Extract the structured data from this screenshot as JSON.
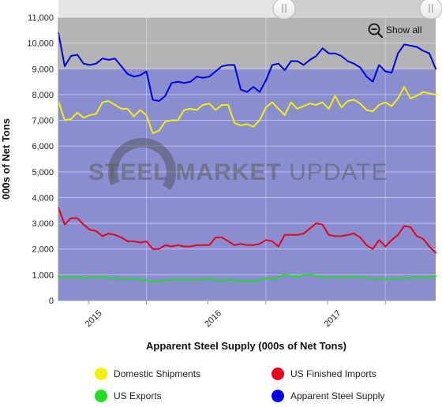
{
  "chart_data": {
    "type": "line",
    "xlabel": "Apparent Steel Supply (000s of Net Tons)",
    "ylabel": "000s of Net Tons",
    "ylim": [
      0,
      11000
    ],
    "yticks": [
      0,
      1000,
      2000,
      3000,
      4000,
      5000,
      6000,
      7000,
      8000,
      9000,
      10000,
      11000
    ],
    "ytick_labels": [
      "0",
      "1,000",
      "2,000",
      "3,000",
      "4,000",
      "5,000",
      "6,000",
      "7,000",
      "8,000",
      "9,000",
      "10,000",
      "11,000"
    ],
    "x_tick_labels": [
      "2015",
      "2016",
      "2017"
    ],
    "grid": true,
    "legend_position": "bottom",
    "watermark": "STEEL MARKET UPDATE",
    "show_all_label": "Show all",
    "series": [
      {
        "name": "Domestic Shipments",
        "color": "#f2f200",
        "values": [
          7750,
          7000,
          7050,
          7300,
          7100,
          7200,
          7250,
          7700,
          7750,
          7600,
          7450,
          7450,
          7150,
          7400,
          7200,
          6500,
          6600,
          6950,
          7000,
          7000,
          7400,
          7450,
          7400,
          7600,
          7650,
          7400,
          7600,
          7600,
          6900,
          6800,
          6850,
          6750,
          7000,
          7500,
          7700,
          7450,
          7200,
          7700,
          7450,
          7550,
          7650,
          7600,
          7700,
          7450,
          7950,
          7500,
          7750,
          7800,
          7650,
          7400,
          7350,
          7600,
          7700,
          7550,
          7850,
          8300,
          7850,
          7950,
          8100,
          8050,
          8000
        ]
      },
      {
        "name": "US Finished Imports",
        "color": "#e8001c",
        "values": [
          3600,
          2950,
          3200,
          3200,
          2950,
          2750,
          2700,
          2500,
          2600,
          2550,
          2450,
          2300,
          2300,
          2250,
          2300,
          2000,
          2000,
          2150,
          2100,
          2150,
          2100,
          2100,
          2150,
          2150,
          2150,
          2450,
          2450,
          2300,
          2150,
          2200,
          2150,
          2150,
          2200,
          2350,
          2300,
          2100,
          2550,
          2550,
          2550,
          2600,
          2800,
          3000,
          2950,
          2550,
          2500,
          2500,
          2550,
          2600,
          2450,
          2150,
          2000,
          2350,
          2100,
          2350,
          2550,
          2900,
          2850,
          2500,
          2400,
          2100,
          1850
        ]
      },
      {
        "name": "US Exports",
        "color": "#22dd22",
        "values": [
          950,
          900,
          900,
          920,
          880,
          900,
          880,
          920,
          870,
          870,
          860,
          840,
          850,
          800,
          780,
          730,
          750,
          790,
          800,
          800,
          810,
          810,
          800,
          820,
          830,
          800,
          780,
          810,
          790,
          770,
          760,
          750,
          800,
          850,
          830,
          900,
          1000,
          950,
          920,
          980,
          1000,
          950,
          930,
          880,
          920,
          900,
          910,
          920,
          900,
          900,
          830,
          850,
          820,
          830,
          850,
          880,
          890,
          900,
          900,
          900,
          960
        ]
      },
      {
        "name": "Apparent Steel Supply",
        "color": "#0000e6",
        "values": [
          10400,
          9100,
          9500,
          9550,
          9200,
          9150,
          9200,
          9400,
          9350,
          9400,
          9100,
          8800,
          8700,
          8750,
          8900,
          7800,
          7750,
          7950,
          8450,
          8500,
          8450,
          8500,
          8700,
          8650,
          8700,
          8900,
          9100,
          9150,
          9150,
          8200,
          8100,
          8300,
          8100,
          8550,
          9150,
          9200,
          8950,
          9300,
          9300,
          9150,
          9350,
          9500,
          9800,
          9600,
          9600,
          9500,
          9300,
          9200,
          9050,
          8700,
          8500,
          9150,
          8900,
          8850,
          9600,
          9950,
          9900,
          9850,
          9700,
          9600,
          9000
        ]
      }
    ]
  }
}
